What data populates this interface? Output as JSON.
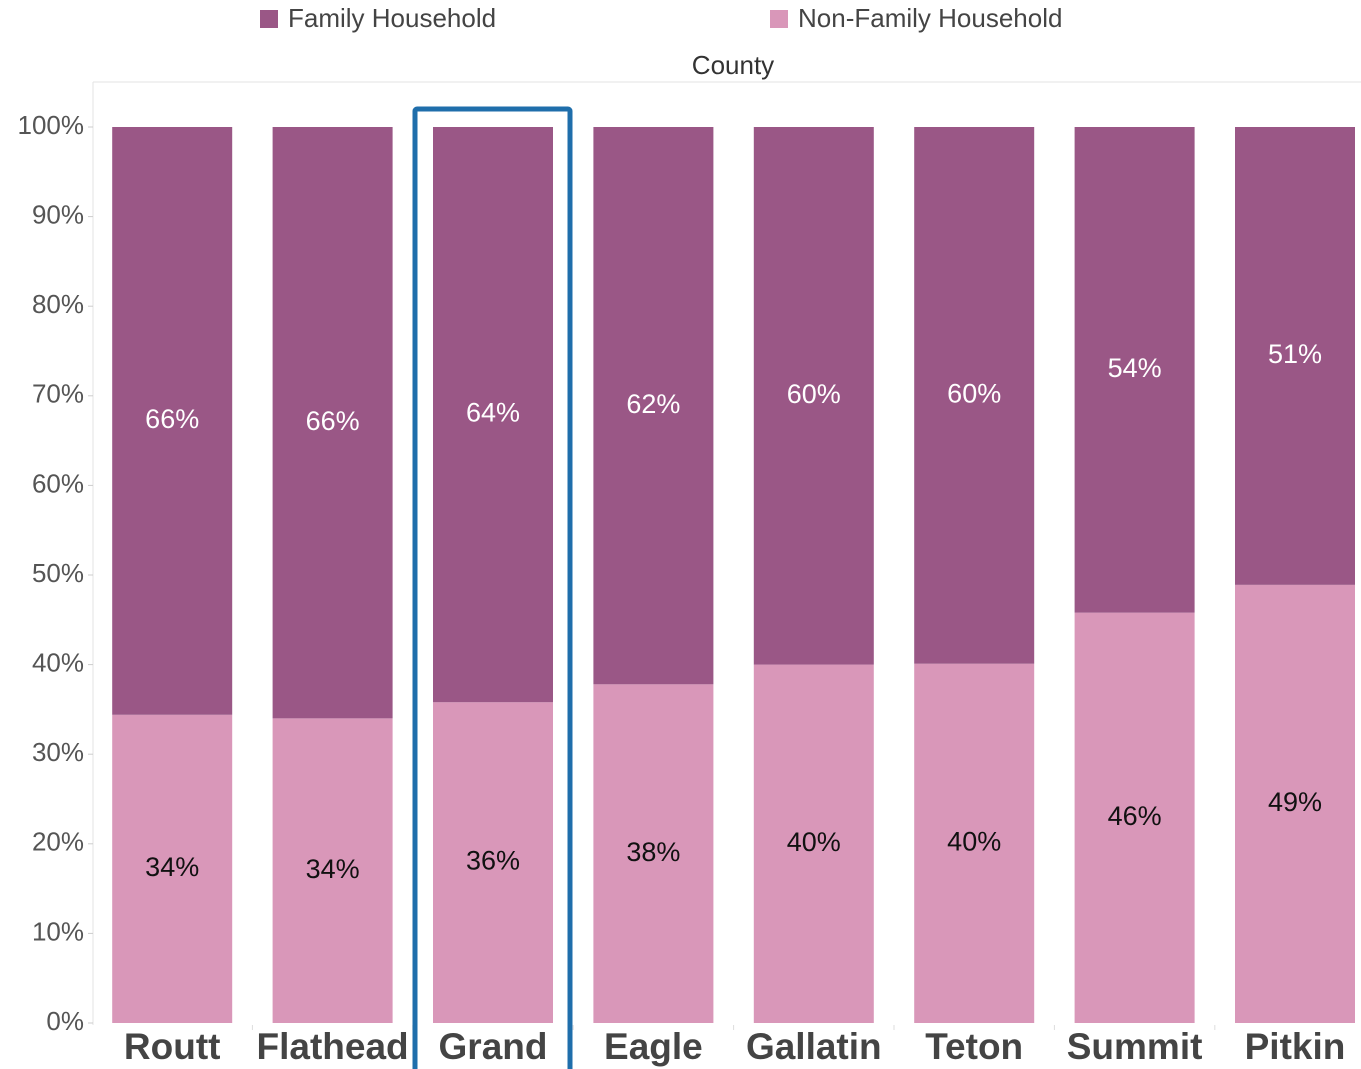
{
  "chart_data": {
    "type": "stacked_bar",
    "x_label": "County",
    "categories": [
      "Routt",
      "Flathead",
      "Grand",
      "Eagle",
      "Gallatin",
      "Teton",
      "Summit",
      "Pitkin"
    ],
    "series": [
      {
        "name": "Family Household",
        "color": "#9a5786",
        "values": [
          65.6,
          66.0,
          64.2,
          62.2,
          60.0,
          59.9,
          54.2,
          51.1
        ],
        "value_labels": [
          "66%",
          "66%",
          "64%",
          "62%",
          "60%",
          "60%",
          "54%",
          "51%"
        ]
      },
      {
        "name": "Non-Family Household",
        "color": "#d997b9",
        "values": [
          34.4,
          34.0,
          35.8,
          37.8,
          40.0,
          40.1,
          45.8,
          48.9
        ],
        "value_labels": [
          "34%",
          "34%",
          "36%",
          "38%",
          "40%",
          "40%",
          "46%",
          "49%"
        ]
      }
    ],
    "ylim": [
      0,
      100
    ],
    "yticks": [
      {
        "value": 0,
        "label": "0%"
      },
      {
        "value": 10,
        "label": "10%"
      },
      {
        "value": 20,
        "label": "20%"
      },
      {
        "value": 30,
        "label": "30%"
      },
      {
        "value": 40,
        "label": "40%"
      },
      {
        "value": 50,
        "label": "50%"
      },
      {
        "value": 60,
        "label": "60%"
      },
      {
        "value": 70,
        "label": "70%"
      },
      {
        "value": 80,
        "label": "80%"
      },
      {
        "value": 90,
        "label": "90%"
      },
      {
        "value": 100,
        "label": "100%"
      }
    ],
    "grid": false
  }
}
